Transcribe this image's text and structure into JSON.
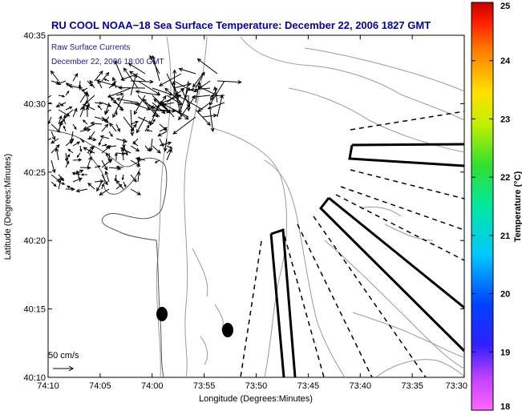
{
  "title": "RU COOL  NOAA−18  Sea Surface Temperature:  December 22, 2006 1827 GMT",
  "legend": {
    "line1": "Raw Surface Currents",
    "line2": "December 22, 2006 18:00 GMT"
  },
  "scale": {
    "label": "50 cm/s"
  },
  "axes": {
    "xlabel": "Longitude (Degrees:Minutes)",
    "ylabel": "Latitude (Degrees:Minutes)",
    "xticks": [
      "74:10",
      "74:05",
      "74:00",
      "73:55",
      "73:50",
      "73:45",
      "73:40",
      "73:35",
      "73:30"
    ],
    "yticks": [
      "40:35",
      "40:30",
      "40:25",
      "40:20",
      "40:15",
      "40:10"
    ]
  },
  "colorbar": {
    "label": "Temperature (°C)",
    "min": 18,
    "max": 25,
    "ticks": [
      "25",
      "24",
      "23",
      "22",
      "21",
      "20",
      "19",
      "18"
    ]
  },
  "colors": {
    "title": "#0000aa",
    "legend_text": "#1a1a9a",
    "land_outline": "#555555",
    "contour": "#9a9a9a"
  }
}
